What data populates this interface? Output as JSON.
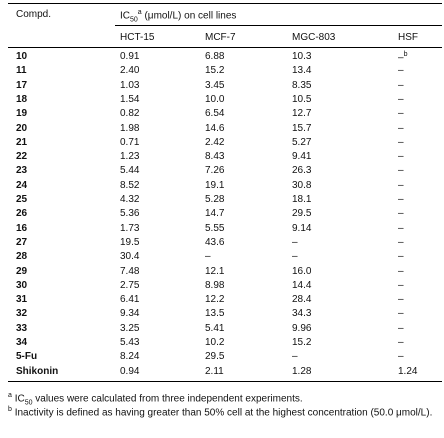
{
  "table": {
    "header": {
      "compound": "Compd.",
      "ic": "IC",
      "ic_sub": "50",
      "ic_sup": "a",
      "ic_rest": " (μmol/L) on cell lines"
    },
    "columns": [
      "HCT-15",
      "MCF-7",
      "MGC-803",
      "HSF"
    ],
    "rows": [
      [
        "10",
        "0.91",
        "6.88",
        "10.3",
        "–"
      ],
      [
        "11",
        "2.40",
        "15.2",
        "13.4",
        "–"
      ],
      [
        "17",
        "1.03",
        "3.45",
        "8.35",
        "–"
      ],
      [
        "18",
        "1.54",
        "10.0",
        "10.5",
        "–"
      ],
      [
        "19",
        "0.82",
        "6.54",
        "12.7",
        "–"
      ],
      [
        "20",
        "1.98",
        "14.6",
        "15.7",
        "–"
      ],
      [
        "21",
        "0.71",
        "2.42",
        "5.27",
        "–"
      ],
      [
        "22",
        "1.23",
        "8.43",
        "9.41",
        "–"
      ],
      [
        "23",
        "5.44",
        "7.26",
        "26.3",
        "–"
      ],
      [
        "24",
        "8.52",
        "19.1",
        "30.8",
        "–"
      ],
      [
        "25",
        "4.32",
        "5.28",
        "18.1",
        "–"
      ],
      [
        "26",
        "5.36",
        "14.7",
        "29.5",
        "–"
      ],
      [
        "16",
        "1.73",
        "5.55",
        "9.14",
        "–"
      ],
      [
        "27",
        "19.5",
        "43.6",
        "–",
        "–"
      ],
      [
        "28",
        "30.4",
        "–",
        "–",
        "–"
      ],
      [
        "29",
        "7.48",
        "12.1",
        "16.0",
        "–"
      ],
      [
        "30",
        "2.75",
        "8.98",
        "14.4",
        "–"
      ],
      [
        "31",
        "6.41",
        "12.2",
        "28.4",
        "–"
      ],
      [
        "32",
        "9.34",
        "13.5",
        "34.3",
        "–"
      ],
      [
        "33",
        "3.25",
        "5.41",
        "9.96",
        "–"
      ],
      [
        "34",
        "5.43",
        "10.2",
        "15.2",
        "–"
      ],
      [
        "5-Fu",
        "8.24",
        "29.5",
        "–",
        "–"
      ],
      [
        "Shikonin",
        "0.94",
        "2.11",
        "1.28",
        "1.24"
      ]
    ],
    "first_row_hsf_marker": "b"
  },
  "footnotes": [
    {
      "marker": "a",
      "ic": "IC",
      "ic_sub": "50",
      "text": " values were calculated from three independent experiments."
    },
    {
      "marker": "b",
      "text": "Inactivity is defined as having greater than 50% cell at the highest concentration (50.0 μmol/L)."
    }
  ]
}
